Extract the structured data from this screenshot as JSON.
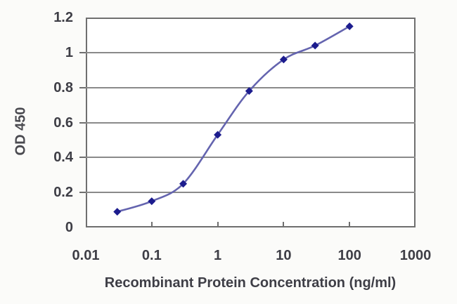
{
  "chart_data": {
    "type": "line",
    "x": [
      0.03,
      0.1,
      0.3,
      1,
      3,
      10,
      30,
      100
    ],
    "y": [
      0.09,
      0.15,
      0.25,
      0.53,
      0.78,
      0.96,
      1.04,
      1.15
    ],
    "title": "",
    "xlabel": "Recombinant Protein Concentration (ng/ml)",
    "ylabel": "OD 450",
    "x_scale": "log",
    "xlim": [
      0.01,
      1000
    ],
    "ylim": [
      0,
      1.2
    ],
    "x_ticks": [
      "0.01",
      "0.1",
      "1",
      "10",
      "100",
      "1000"
    ],
    "y_ticks": [
      "0",
      "0.2",
      "0.4",
      "0.6",
      "0.8",
      "1",
      "1.2"
    ],
    "grid": "horizontal",
    "legend": "none",
    "marker": "diamond",
    "colors": {
      "line": "#6464af",
      "marker": "#1c1c8e",
      "gridline": "#8a8a8a",
      "frame": "#6f6f6f",
      "text": "#3e3e46",
      "plot_background": "#ffffff",
      "page_background": "#fbfbf9"
    }
  }
}
